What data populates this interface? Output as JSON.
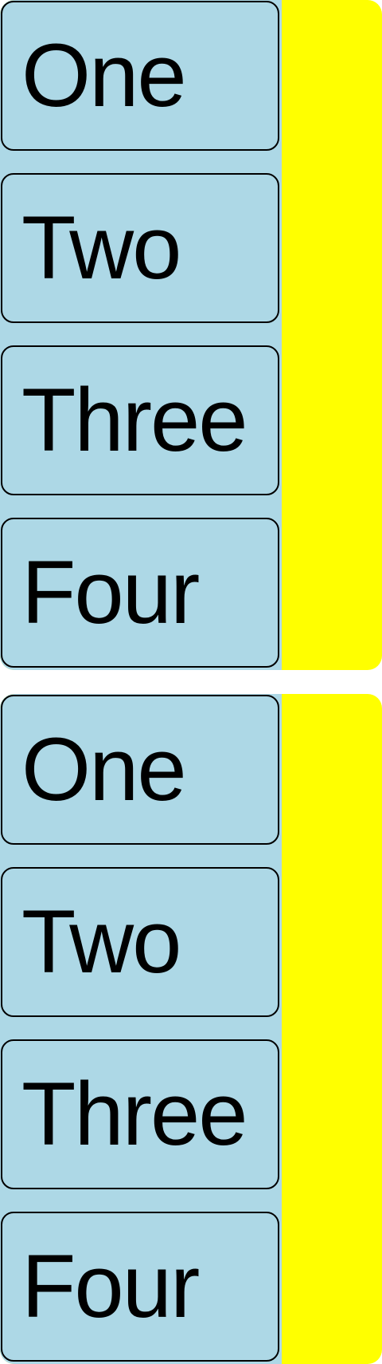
{
  "colors": {
    "panel_background": "#ffff00",
    "item_background": "#add8e6",
    "item_border": "#000000",
    "text": "#000000"
  },
  "lists": [
    {
      "items": [
        {
          "label": "One"
        },
        {
          "label": "Two"
        },
        {
          "label": "Three"
        },
        {
          "label": "Four"
        }
      ]
    },
    {
      "items": [
        {
          "label": "One"
        },
        {
          "label": "Two"
        },
        {
          "label": "Three"
        },
        {
          "label": "Four"
        }
      ]
    }
  ]
}
